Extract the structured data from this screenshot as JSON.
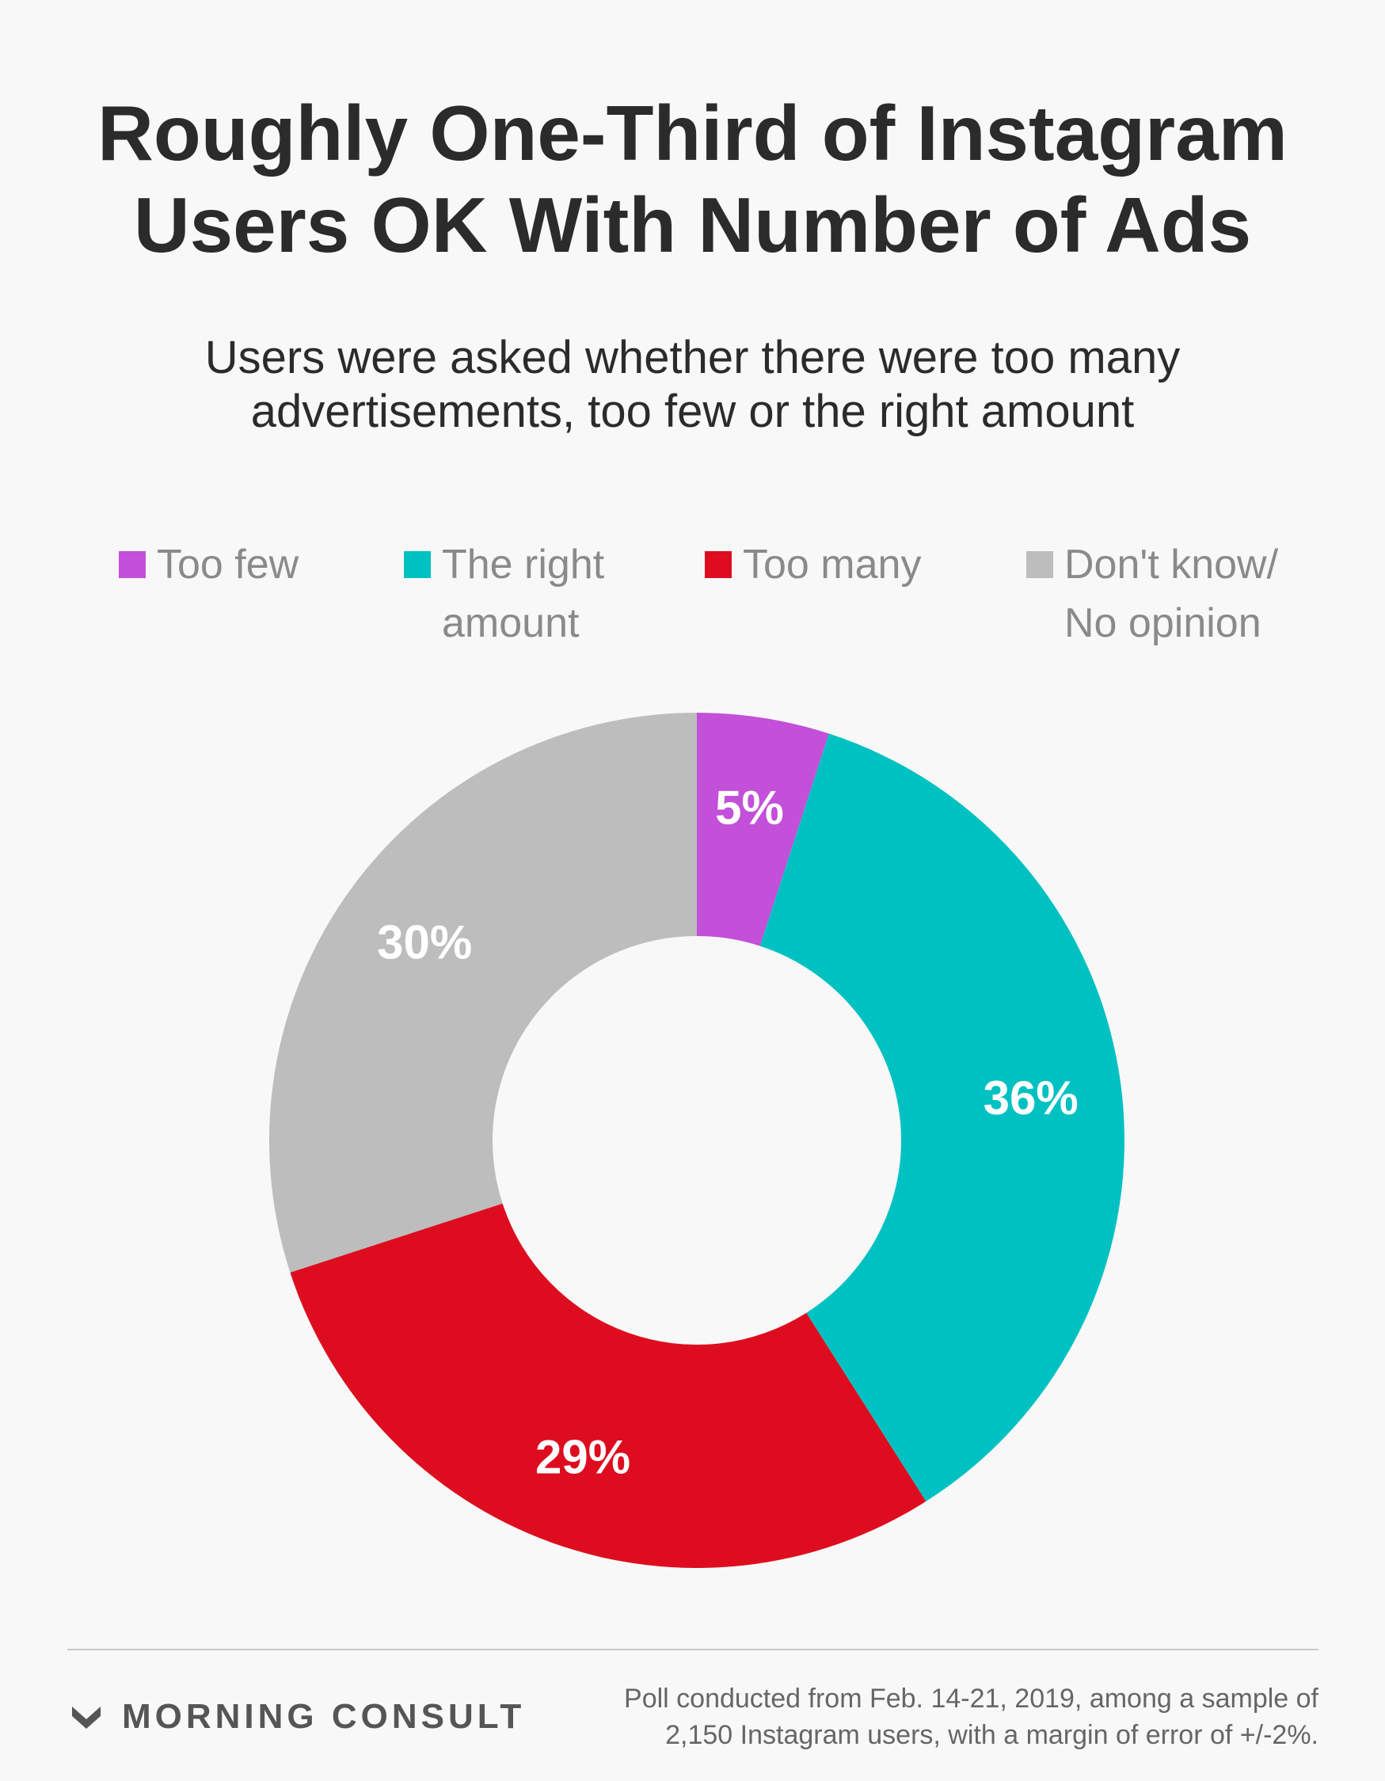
{
  "title_lines": [
    "Roughly One-Third of Instagram",
    "Users OK With Number of Ads"
  ],
  "subtitle_lines": [
    "Users were asked whether there were too many",
    "advertisements, too few or the right amount"
  ],
  "legend": [
    {
      "lines": [
        "Too few"
      ],
      "color": "#c350d8"
    },
    {
      "lines": [
        "The right",
        "amount"
      ],
      "color": "#00c1c2"
    },
    {
      "lines": [
        "Too many"
      ],
      "color": "#dd0d1f"
    },
    {
      "lines": [
        "Don't know/",
        "No opinion"
      ],
      "color": "#bdbdbd"
    }
  ],
  "chart_data": {
    "type": "pie",
    "donut": true,
    "categories": [
      "Too few",
      "The right amount",
      "Too many",
      "Don't know/No opinion"
    ],
    "values": [
      5,
      36,
      29,
      30
    ],
    "value_labels": [
      "5%",
      "36%",
      "29%",
      "30%"
    ],
    "colors": [
      "#c350d8",
      "#00c1c2",
      "#dd0d1f",
      "#bdbdbd"
    ],
    "start_angle": "top",
    "direction": "clockwise",
    "legend_position": "top"
  },
  "footer": {
    "brand": "MORNING CONSULT",
    "note_lines": [
      "Poll conducted from Feb. 14-21, 2019, among a sample of",
      "2,150 Instagram users, with a margin of error of +/-2%."
    ]
  }
}
